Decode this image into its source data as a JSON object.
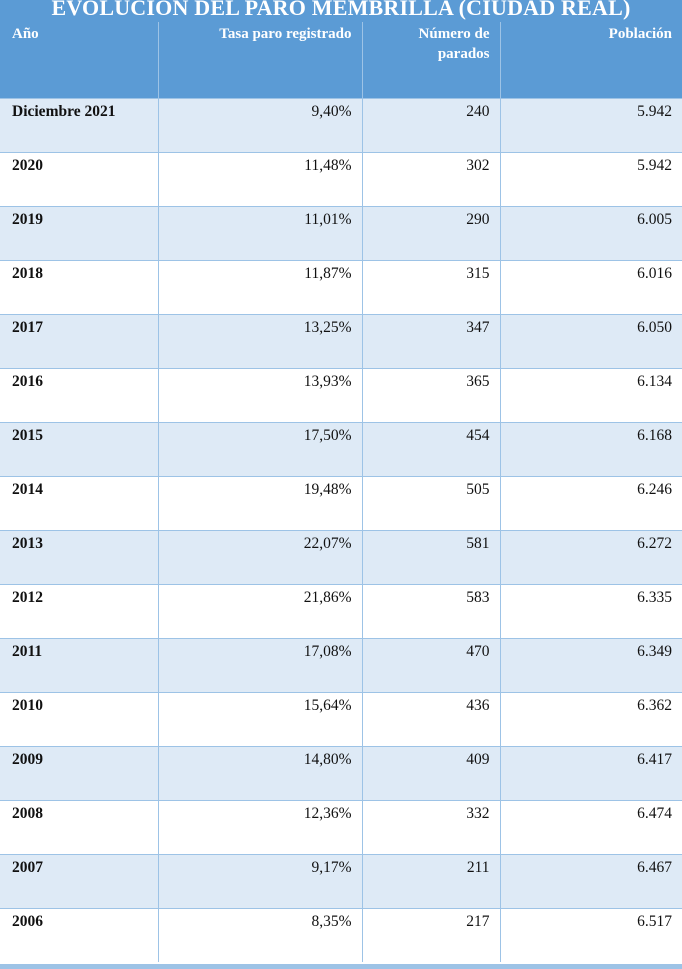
{
  "title": "EVOLUCIÓN DEL PARO MEMBRILLA (CIUDAD REAL)",
  "headers": [
    "Año",
    "Tasa paro registrado",
    "Número de parados",
    "Población"
  ],
  "rows": [
    [
      "Diciembre 2021",
      "9,40%",
      "240",
      "5.942"
    ],
    [
      "2020",
      "11,48%",
      "302",
      "5.942"
    ],
    [
      "2019",
      "11,01%",
      "290",
      "6.005"
    ],
    [
      "2018",
      "11,87%",
      "315",
      "6.016"
    ],
    [
      "2017",
      "13,25%",
      "347",
      "6.050"
    ],
    [
      "2016",
      "13,93%",
      "365",
      "6.134"
    ],
    [
      "2015",
      "17,50%",
      "454",
      "6.168"
    ],
    [
      "2014",
      "19,48%",
      "505",
      "6.246"
    ],
    [
      "2013",
      "22,07%",
      "581",
      "6.272"
    ],
    [
      "2012",
      "21,86%",
      "583",
      "6.335"
    ],
    [
      "2011",
      "17,08%",
      "470",
      "6.349"
    ],
    [
      "2010",
      "15,64%",
      "436",
      "6.362"
    ],
    [
      "2009",
      "14,80%",
      "409",
      "6.417"
    ],
    [
      "2008",
      "12,36%",
      "332",
      "6.474"
    ],
    [
      "2007",
      "9,17%",
      "211",
      "6.467"
    ],
    [
      "2006",
      "8,35%",
      "217",
      "6.517"
    ]
  ],
  "colors": {
    "header_bg": "#5b9bd5",
    "row_band": "#deeaf6",
    "grid_line": "#9dc3e6"
  }
}
